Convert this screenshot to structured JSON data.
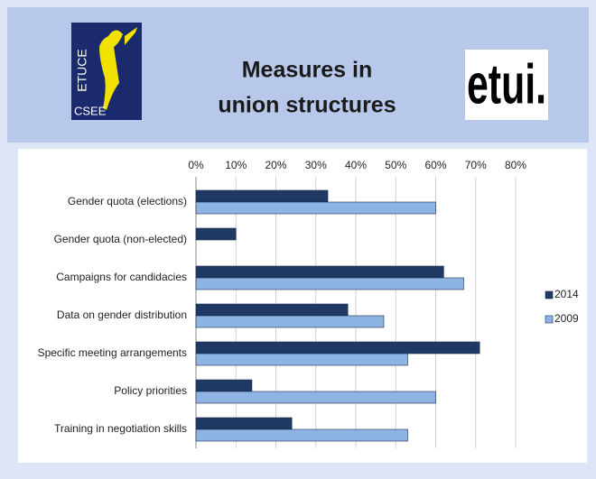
{
  "logos": {
    "left": [
      "ETUCE",
      "CSEE"
    ],
    "right": "etui."
  },
  "chart_data": {
    "type": "bar",
    "orientation": "horizontal",
    "title": [
      "Measures in",
      "union structures"
    ],
    "categories": [
      "Gender quota (elections)",
      "Gender quota (non-elected)",
      "Campaigns for candidacies",
      "Data on gender distribution",
      "Specific meeting arrangements",
      "Policy priorities",
      "Training in negotiation skills"
    ],
    "series": [
      {
        "name": "2014",
        "color": "#1f3864",
        "values": [
          33,
          10,
          62,
          38,
          71,
          14,
          24
        ]
      },
      {
        "name": "2009",
        "color": "#8eb4e3",
        "values": [
          60,
          null,
          67,
          47,
          53,
          60,
          53
        ]
      }
    ],
    "xlim": [
      0,
      80
    ],
    "xticks": [
      {
        "value": 0,
        "label": "0%"
      },
      {
        "value": 10,
        "label": "10%"
      },
      {
        "value": 20,
        "label": "20%"
      },
      {
        "value": 30,
        "label": "30%"
      },
      {
        "value": 40,
        "label": "40%"
      },
      {
        "value": 50,
        "label": "50%"
      },
      {
        "value": 60,
        "label": "60%"
      },
      {
        "value": 70,
        "label": "70%"
      },
      {
        "value": 80,
        "label": "80%"
      }
    ],
    "grid": true,
    "legend": "right"
  }
}
